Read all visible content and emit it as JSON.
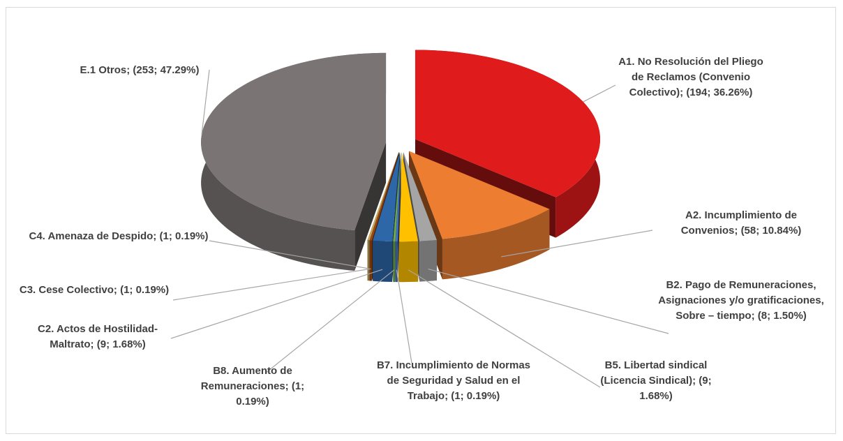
{
  "chart_data": {
    "type": "pie3d",
    "categories": [
      "A1. No Resolución del Pliego de Reclamos (Convenio Colectivo);",
      "A2. Incumplimiento de Convenios;",
      "B2. Pago de Remuneraciones, Asignaciones y/o gratificaciones, Sobre – tiempo;",
      "B5. Libertad sindical (Licencia Sindical);",
      "B7. Incumplimiento de Normas de Seguridad y Salud en el Trabajo;",
      "B8. Aumento de Remuneraciones;",
      "C2. Actos de Hostilidad-Maltrato;",
      "C3. Cese Colectivo;",
      "C4. Amenaza de Despido;",
      "E.1 Otros;"
    ],
    "values": [
      194,
      58,
      8,
      9,
      1,
      1,
      9,
      1,
      1,
      253
    ],
    "value_labels": [
      "(194; 36.26%)",
      "(58; 10.84%)",
      "(8; 1.50%)",
      "(9; 1.68%)",
      "(1; 0.19%)",
      "(1; 0.19%)",
      "(9; 1.68%)",
      "(1; 0.19%)",
      "(1; 0.19%)",
      "(253; 47.29%)"
    ],
    "colors": [
      "#e01b1b",
      "#ed7d31",
      "#a5a5a5",
      "#ffc000",
      "#4472c4",
      "#70ad47",
      "#2e67a8",
      "#9e480e",
      "#c4a35a",
      "#7a7574"
    ]
  }
}
